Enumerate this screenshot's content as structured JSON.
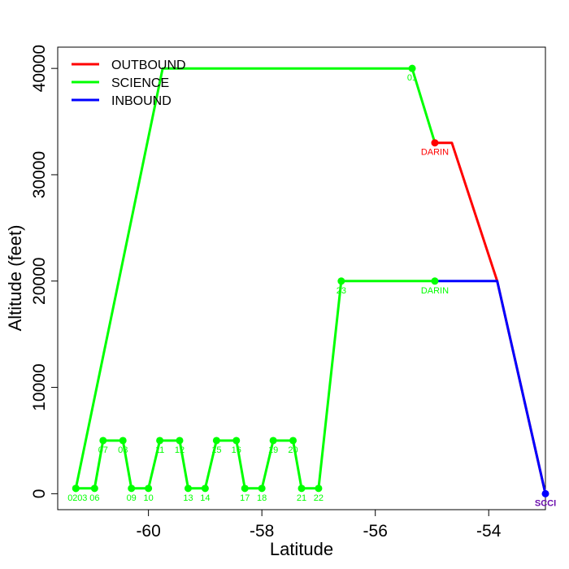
{
  "chart_data": {
    "type": "line",
    "xlabel": "Latitude",
    "ylabel": "Altitude (feet)",
    "xlim": [
      -61.6,
      -53.0
    ],
    "ylim": [
      -1500,
      42000
    ],
    "xticks": [
      -60,
      -58,
      -56,
      -54
    ],
    "yticks": [
      0,
      10000,
      20000,
      30000,
      40000
    ],
    "grid": false,
    "legend_position": "top-left",
    "legend": [
      {
        "label": "OUTBOUND",
        "color": "#ff0000"
      },
      {
        "label": "SCIENCE",
        "color": "#00ff00"
      },
      {
        "label": "INBOUND",
        "color": "#0000ff"
      }
    ],
    "series": [
      {
        "name": "OUTBOUND",
        "color": "#ff0000",
        "x": [
          -53.0,
          -53.85,
          -54.65,
          -54.95
        ],
        "y": [
          0,
          20000,
          33000,
          33000
        ]
      },
      {
        "name": "SCIENCE",
        "color": "#00ff00",
        "x": [
          -54.95,
          -55.35,
          -59.75,
          -61.28,
          -61.28,
          -60.95,
          -60.8,
          -60.45,
          -60.3,
          -60.0,
          -59.8,
          -59.45,
          -59.3,
          -59.0,
          -58.8,
          -58.45,
          -58.3,
          -58.0,
          -57.8,
          -57.45,
          -57.3,
          -57.0,
          -56.6,
          -54.95
        ],
        "y": [
          33000,
          40000,
          40000,
          500,
          500,
          500,
          5000,
          5000,
          500,
          500,
          5000,
          5000,
          500,
          500,
          5000,
          5000,
          500,
          500,
          5000,
          5000,
          500,
          500,
          20000,
          20000
        ]
      },
      {
        "name": "INBOUND",
        "color": "#0000ff",
        "x": [
          -54.95,
          -53.85,
          -53.0
        ],
        "y": [
          20000,
          20000,
          0
        ]
      }
    ],
    "points": [
      {
        "x": -53.0,
        "y": 0,
        "label": "SCCI",
        "color": "#0000ff",
        "label_color": "#6a0dad",
        "bold": true,
        "dx": 0
      },
      {
        "x": -54.95,
        "y": 33000,
        "label": "DARIN",
        "color": "#ff0000",
        "label_color": "#ff0000",
        "bold": false,
        "dx": 0
      },
      {
        "x": -55.35,
        "y": 40000,
        "label": "01",
        "color": "#00ff00",
        "label_color": "#00ff00",
        "bold": false,
        "dx": 0
      },
      {
        "x": -61.28,
        "y": 500,
        "label": "02",
        "color": "#00ff00",
        "label_color": "#00ff00",
        "bold": false,
        "dx": -1
      },
      {
        "x": -61.28,
        "y": 500,
        "label": "03",
        "color": "#00ff00",
        "label_color": "#00ff00",
        "bold": false,
        "dx": 2
      },
      {
        "x": -60.95,
        "y": 500,
        "label": "06",
        "color": "#00ff00",
        "label_color": "#00ff00",
        "bold": false,
        "dx": 0
      },
      {
        "x": -60.8,
        "y": 5000,
        "label": "07",
        "color": "#00ff00",
        "label_color": "#00ff00",
        "bold": false,
        "dx": 0
      },
      {
        "x": -60.45,
        "y": 5000,
        "label": "08",
        "color": "#00ff00",
        "label_color": "#00ff00",
        "bold": false,
        "dx": 0
      },
      {
        "x": -60.3,
        "y": 500,
        "label": "09",
        "color": "#00ff00",
        "label_color": "#00ff00",
        "bold": false,
        "dx": 0
      },
      {
        "x": -60.0,
        "y": 500,
        "label": "10",
        "color": "#00ff00",
        "label_color": "#00ff00",
        "bold": false,
        "dx": 0
      },
      {
        "x": -59.8,
        "y": 5000,
        "label": "11",
        "color": "#00ff00",
        "label_color": "#00ff00",
        "bold": false,
        "dx": 0
      },
      {
        "x": -59.45,
        "y": 5000,
        "label": "12",
        "color": "#00ff00",
        "label_color": "#00ff00",
        "bold": false,
        "dx": 0
      },
      {
        "x": -59.3,
        "y": 500,
        "label": "13",
        "color": "#00ff00",
        "label_color": "#00ff00",
        "bold": false,
        "dx": 0
      },
      {
        "x": -59.0,
        "y": 500,
        "label": "14",
        "color": "#00ff00",
        "label_color": "#00ff00",
        "bold": false,
        "dx": 0
      },
      {
        "x": -58.8,
        "y": 5000,
        "label": "15",
        "color": "#00ff00",
        "label_color": "#00ff00",
        "bold": false,
        "dx": 0
      },
      {
        "x": -58.45,
        "y": 5000,
        "label": "16",
        "color": "#00ff00",
        "label_color": "#00ff00",
        "bold": false,
        "dx": 0
      },
      {
        "x": -58.3,
        "y": 500,
        "label": "17",
        "color": "#00ff00",
        "label_color": "#00ff00",
        "bold": false,
        "dx": 0
      },
      {
        "x": -58.0,
        "y": 500,
        "label": "18",
        "color": "#00ff00",
        "label_color": "#00ff00",
        "bold": false,
        "dx": 0
      },
      {
        "x": -57.8,
        "y": 5000,
        "label": "19",
        "color": "#00ff00",
        "label_color": "#00ff00",
        "bold": false,
        "dx": 0
      },
      {
        "x": -57.45,
        "y": 5000,
        "label": "20",
        "color": "#00ff00",
        "label_color": "#00ff00",
        "bold": false,
        "dx": 0
      },
      {
        "x": -57.3,
        "y": 500,
        "label": "21",
        "color": "#00ff00",
        "label_color": "#00ff00",
        "bold": false,
        "dx": 0
      },
      {
        "x": -57.0,
        "y": 500,
        "label": "22",
        "color": "#00ff00",
        "label_color": "#00ff00",
        "bold": false,
        "dx": 0
      },
      {
        "x": -56.6,
        "y": 20000,
        "label": "23",
        "color": "#00ff00",
        "label_color": "#00ff00",
        "bold": false,
        "dx": 0
      },
      {
        "x": -54.95,
        "y": 20000,
        "label": "DARIN",
        "color": "#00ff00",
        "label_color": "#00ff00",
        "bold": false,
        "dx": 0
      }
    ]
  }
}
